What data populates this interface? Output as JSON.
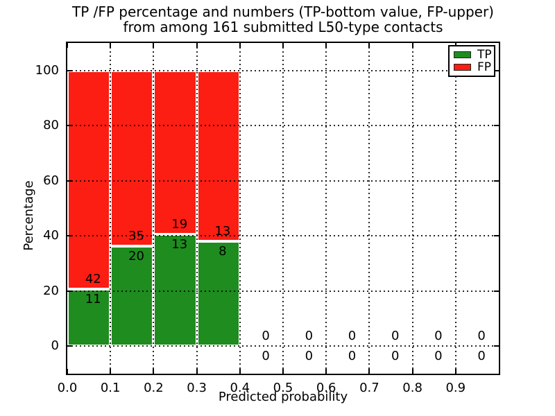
{
  "chart_data": {
    "type": "bar",
    "stacked": true,
    "normalized_to_percent": true,
    "title_lines": [
      "TP /FP percentage and numbers (TP-bottom value, FP-upper)",
      "from among 161 submitted L50-type contacts"
    ],
    "xlabel": "Predicted probability",
    "ylabel": "Percentage",
    "xlim": [
      0.0,
      1.0
    ],
    "ylim": [
      -10,
      110
    ],
    "x_ticks": [
      0.0,
      0.1,
      0.2,
      0.3,
      0.4,
      0.5,
      0.6,
      0.7,
      0.8,
      0.9
    ],
    "y_ticks": [
      0,
      20,
      40,
      60,
      80,
      100
    ],
    "grid": "dotted",
    "legend_position": "upper right",
    "bin_width": 0.1,
    "bin_starts": [
      0.0,
      0.1,
      0.2,
      0.3,
      0.4,
      0.5,
      0.6,
      0.7,
      0.8,
      0.9
    ],
    "series": [
      {
        "name": "TP",
        "color": "#1f8c1f",
        "counts": [
          11,
          20,
          13,
          8,
          0,
          0,
          0,
          0,
          0,
          0
        ]
      },
      {
        "name": "FP",
        "color": "#fc1d13",
        "counts": [
          42,
          35,
          19,
          13,
          0,
          0,
          0,
          0,
          0,
          0
        ]
      }
    ],
    "annotation_rule": "FP count above TP count at each bin"
  }
}
